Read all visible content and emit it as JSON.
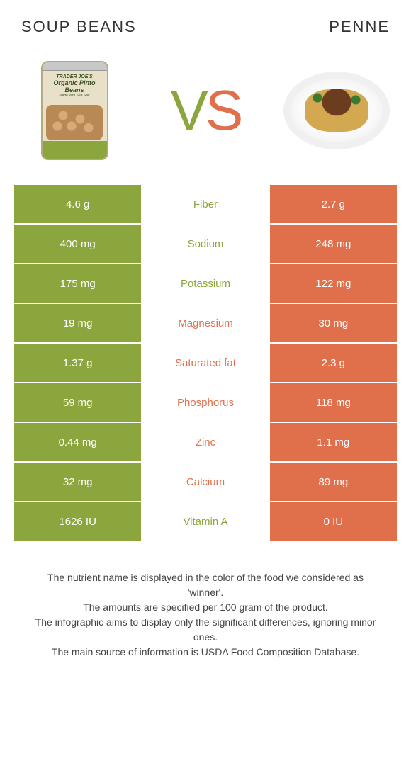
{
  "colors": {
    "green": "#8aa63d",
    "orange": "#e06f4c",
    "bg": "#ffffff",
    "text": "#333333"
  },
  "left_food": {
    "title": "SOUP BEANS",
    "image_label_top": "TRADER JOE'S",
    "image_label": "Organic Pinto Beans",
    "image_sub": "Made with Sea Salt"
  },
  "right_food": {
    "title": "PENNE"
  },
  "vs": {
    "v": "V",
    "s": "S"
  },
  "rows": [
    {
      "left": "4.6 g",
      "label": "Fiber",
      "right": "2.7 g",
      "winner": "left"
    },
    {
      "left": "400 mg",
      "label": "Sodium",
      "right": "248 mg",
      "winner": "left"
    },
    {
      "left": "175 mg",
      "label": "Potassium",
      "right": "122 mg",
      "winner": "left"
    },
    {
      "left": "19 mg",
      "label": "Magnesium",
      "right": "30 mg",
      "winner": "right"
    },
    {
      "left": "1.37 g",
      "label": "Saturated fat",
      "right": "2.3 g",
      "winner": "right"
    },
    {
      "left": "59 mg",
      "label": "Phosphorus",
      "right": "118 mg",
      "winner": "right"
    },
    {
      "left": "0.44 mg",
      "label": "Zinc",
      "right": "1.1 mg",
      "winner": "right"
    },
    {
      "left": "32 mg",
      "label": "Calcium",
      "right": "89 mg",
      "winner": "right"
    },
    {
      "left": "1626 IU",
      "label": "Vitamin A",
      "right": "0 IU",
      "winner": "left"
    }
  ],
  "footer": {
    "line1": "The nutrient name is displayed in the color of the food we considered as 'winner'.",
    "line2": "The amounts are specified per 100 gram of the product.",
    "line3": "The infographic aims to display only the significant differences, ignoring minor ones.",
    "line4": "The main source of information is USDA Food Composition Database."
  }
}
